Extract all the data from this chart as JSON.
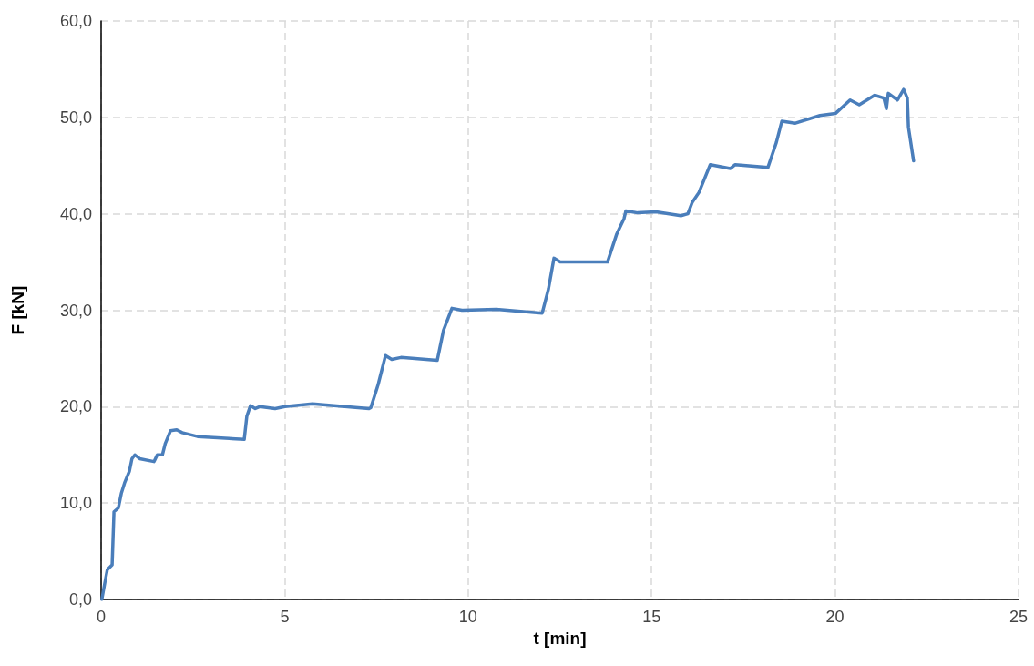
{
  "chart_data": {
    "type": "line",
    "xlabel": "t [min]",
    "ylabel": "F [kN]",
    "xlim": [
      0,
      25
    ],
    "xticks": [
      0,
      5,
      10,
      15,
      20,
      25
    ],
    "ylim": [
      0,
      60
    ],
    "yticks": [
      {
        "value": 0,
        "label": "0,0"
      },
      {
        "value": 10,
        "label": "10,0"
      },
      {
        "value": 20,
        "label": "20,0"
      },
      {
        "value": 30,
        "label": "30,0"
      },
      {
        "value": 40,
        "label": "40,0"
      },
      {
        "value": 50,
        "label": "50,0"
      },
      {
        "value": 60,
        "label": "60,0"
      }
    ],
    "grid": true,
    "marker": "none",
    "line_style": "solid",
    "series": [
      {
        "color": "#4a7ebb",
        "x": [
          0.02,
          0.1,
          0.17,
          0.3,
          0.35,
          0.47,
          0.55,
          0.64,
          0.77,
          0.84,
          0.92,
          1.05,
          1.44,
          1.53,
          1.67,
          1.75,
          1.89,
          2.06,
          2.21,
          2.63,
          3.9,
          3.97,
          4.07,
          4.2,
          4.32,
          4.74,
          5.01,
          5.76,
          7.3,
          7.35,
          7.55,
          7.75,
          7.92,
          8.17,
          9.16,
          9.33,
          9.56,
          9.83,
          10.77,
          12.02,
          12.19,
          12.34,
          12.51,
          13.8,
          14.05,
          14.25,
          14.3,
          14.62,
          15.12,
          15.8,
          15.99,
          16.11,
          16.29,
          16.6,
          17.15,
          17.28,
          18.17,
          18.4,
          18.55,
          18.92,
          19.59,
          20.01,
          20.41,
          20.66,
          21.08,
          21.33,
          21.4,
          21.45,
          21.7,
          21.87,
          21.97,
          22.0,
          22.14
        ],
        "values": [
          0,
          1.7,
          3.1,
          3.6,
          9.1,
          9.5,
          11.0,
          12.1,
          13.3,
          14.6,
          15.0,
          14.6,
          14.3,
          15.0,
          15.0,
          16.2,
          17.5,
          17.6,
          17.3,
          16.9,
          16.6,
          19.0,
          20.1,
          19.8,
          20.0,
          19.8,
          20.0,
          20.3,
          19.8,
          19.9,
          22.3,
          25.3,
          24.9,
          25.1,
          24.8,
          27.9,
          30.2,
          30.0,
          30.1,
          29.7,
          32.2,
          35.4,
          35.0,
          35.0,
          37.9,
          39.5,
          40.3,
          40.1,
          40.2,
          39.8,
          40.0,
          41.2,
          42.2,
          45.1,
          44.7,
          45.1,
          44.8,
          47.4,
          49.6,
          49.4,
          50.2,
          50.4,
          51.8,
          51.3,
          52.3,
          52.0,
          50.9,
          52.5,
          51.8,
          52.9,
          52.0,
          49.0,
          45.5
        ]
      }
    ]
  }
}
